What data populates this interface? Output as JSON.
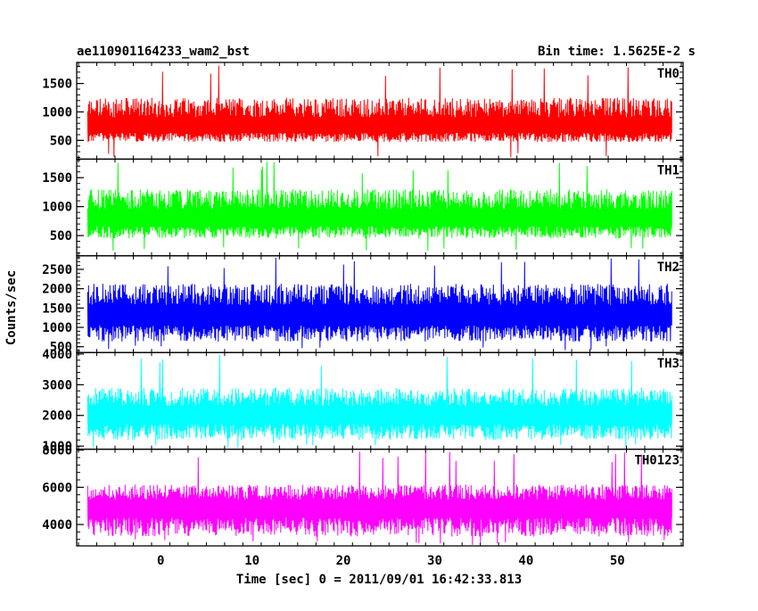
{
  "header": {
    "title": "ae110901164233_wam2_bst",
    "bin_time": "Bin time: 1.5625E-2 s"
  },
  "chart_data": {
    "type": "line",
    "title": "ae110901164233_wam2_bst",
    "ylabel": "Counts/sec",
    "xlabel": "Time [sec] 0 = 2011/09/01 16:42:33.813",
    "xlim": [
      -9.2,
      57.2
    ],
    "x_ticks": [
      0,
      10,
      20,
      30,
      40,
      50
    ],
    "x_range_data": [
      -8,
      56
    ],
    "bin_time_s": 0.015625,
    "grid": false,
    "panels": [
      {
        "name": "TH0",
        "color": "#ff0000",
        "ylim": [
          170,
          1870
        ],
        "yticks": [
          500,
          1000,
          1500
        ],
        "ytick_labels": [
          "500",
          "1000",
          "1500"
        ],
        "base_mean": 720,
        "spread_low": 250,
        "spread_high": 530,
        "peak_max": 1830,
        "floor_min": 200
      },
      {
        "name": "TH1",
        "color": "#00ff00",
        "ylim": [
          150,
          1820
        ],
        "yticks": [
          500,
          1000,
          1500
        ],
        "ytick_labels": [
          "500",
          "1000",
          "1500"
        ],
        "base_mean": 770,
        "spread_low": 320,
        "spread_high": 530,
        "peak_max": 1780,
        "floor_min": 220
      },
      {
        "name": "TH2",
        "color": "#0000ff",
        "ylim": [
          350,
          2850
        ],
        "yticks": [
          500,
          1000,
          1500,
          2000,
          2500
        ],
        "ytick_labels": [
          "500",
          "1000",
          "1500",
          "2000",
          "2500"
        ],
        "base_mean": 1280,
        "spread_low": 650,
        "spread_high": 850,
        "peak_max": 2820,
        "floor_min": 400
      },
      {
        "name": "TH3",
        "color": "#00ffff",
        "ylim": [
          900,
          4050
        ],
        "yticks": [
          1000,
          2000,
          3000,
          4000
        ],
        "ytick_labels": [
          "1000",
          "2000",
          "3000",
          "4000"
        ],
        "base_mean": 2000,
        "spread_low": 800,
        "spread_high": 900,
        "peak_max": 3980,
        "floor_min": 950
      },
      {
        "name": "TH0123",
        "color": "#ff00ff",
        "ylim": [
          2850,
          8050
        ],
        "yticks": [
          4000,
          6000,
          8000
        ],
        "ytick_labels": [
          "4000",
          "6000",
          "8000"
        ],
        "base_mean": 4900,
        "spread_low": 1550,
        "spread_high": 1250,
        "peak_max": 7950,
        "floor_min": 2900
      }
    ]
  }
}
